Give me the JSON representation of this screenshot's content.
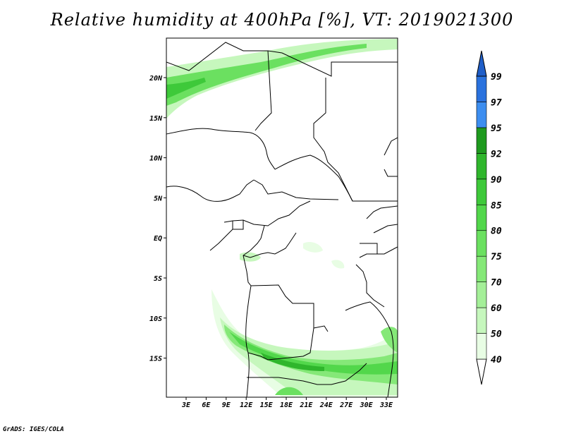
{
  "title": "Relative humidity at 400hPa [%], VT: 2019021300",
  "credit": "GrADS: IGES/COLA",
  "map": {
    "lat_labels": [
      "20N",
      "15N",
      "10N",
      "5N",
      "EQ",
      "5S",
      "10S",
      "15S"
    ],
    "lon_labels": [
      "3E",
      "6E",
      "9E",
      "12E",
      "15E",
      "18E",
      "21E",
      "24E",
      "27E",
      "30E",
      "33E"
    ]
  },
  "colorbar": {
    "levels": [
      "40",
      "50",
      "60",
      "70",
      "75",
      "80",
      "85",
      "90",
      "92",
      "95",
      "97",
      "99"
    ],
    "colors": [
      "#e8fde4",
      "#c6f7bd",
      "#a4ef98",
      "#85e878",
      "#6be060",
      "#52d74b",
      "#3ec93a",
      "#2fb62c",
      "#1f9a1f",
      "#3d8ef0",
      "#2a72de",
      "#1f5ec8"
    ]
  }
}
